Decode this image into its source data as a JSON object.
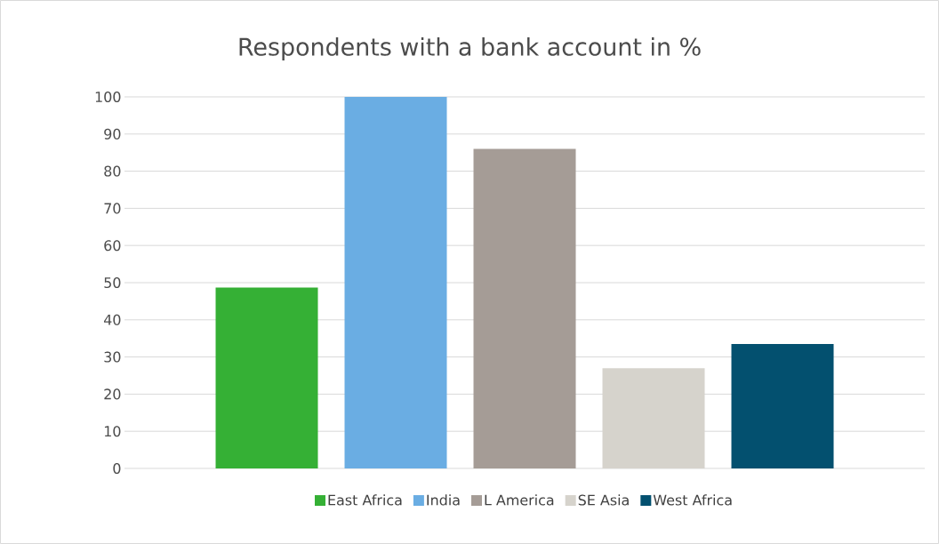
{
  "chart_data": {
    "type": "bar",
    "title": "Respondents with a bank account in %",
    "categories": [
      null
    ],
    "series": [
      {
        "name": "East Africa",
        "color": "#35b035",
        "values": [
          48.7
        ]
      },
      {
        "name": "India",
        "color": "#6aade3",
        "values": [
          100
        ]
      },
      {
        "name": "L America",
        "color": "#a59c96",
        "values": [
          86
        ]
      },
      {
        "name": "SE Asia",
        "color": "#d6d3cc",
        "values": [
          27
        ]
      },
      {
        "name": "West Africa",
        "color": "#03506f",
        "values": [
          33.5
        ]
      }
    ],
    "ylim": [
      0,
      100
    ],
    "yticks": [
      0,
      10,
      20,
      30,
      40,
      50,
      60,
      70,
      80,
      90,
      100
    ],
    "grid": "y",
    "legend": "bottom"
  }
}
